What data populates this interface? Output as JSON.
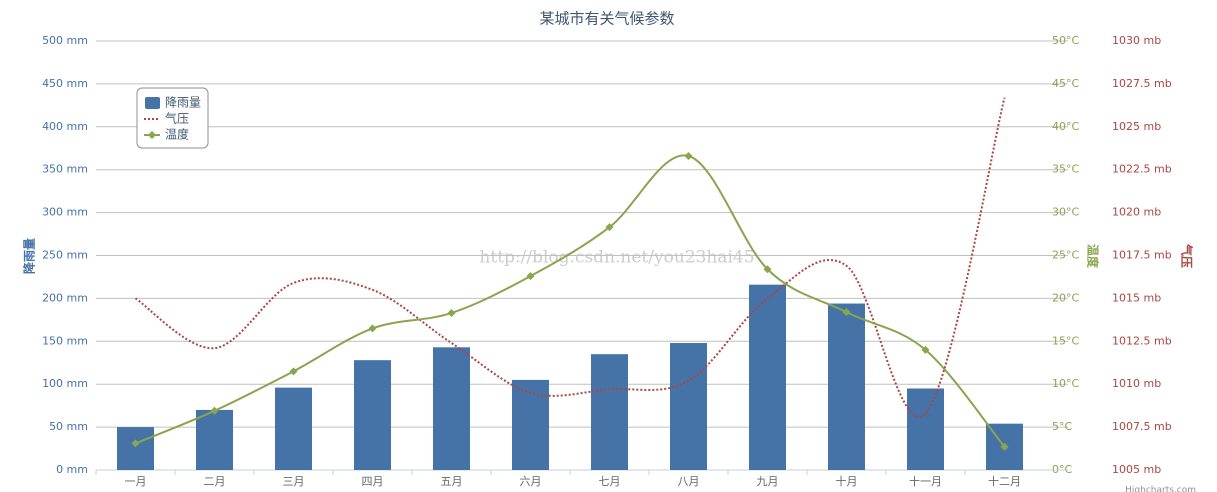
{
  "chart_data": {
    "type": "bar",
    "title": "某城市有关气候参数",
    "categories": [
      "一月",
      "二月",
      "三月",
      "四月",
      "五月",
      "六月",
      "七月",
      "八月",
      "九月",
      "十月",
      "十一月",
      "十二月"
    ],
    "series": [
      {
        "name": "降雨量",
        "type": "column",
        "axis": "y",
        "color": "#4572A7",
        "values": [
          50,
          70,
          96,
          128,
          143,
          105,
          135,
          148,
          216,
          194,
          95,
          54
        ]
      },
      {
        "name": "气压",
        "type": "spline",
        "dash": true,
        "axis": "y3",
        "color": "#AA4643",
        "values": [
          1015.0,
          1012.1,
          1015.9,
          1015.5,
          1012.4,
          1009.5,
          1009.7,
          1010.2,
          1015.0,
          1016.9,
          1008.3,
          1026.7
        ]
      },
      {
        "name": "温度",
        "type": "spline",
        "marker": true,
        "axis": "y2",
        "color": "#89A54E",
        "values": [
          3.1,
          6.9,
          11.5,
          16.5,
          18.3,
          22.6,
          28.3,
          36.6,
          23.4,
          18.4,
          14.0,
          2.7
        ]
      }
    ],
    "y_label": "降雨量",
    "ylim": [
      0,
      500
    ],
    "yticks": [
      {
        "value": 0,
        "label": "0 mm"
      },
      {
        "value": 50,
        "label": "50 mm"
      },
      {
        "value": 100,
        "label": "100 mm"
      },
      {
        "value": 150,
        "label": "150 mm"
      },
      {
        "value": 200,
        "label": "200 mm"
      },
      {
        "value": 250,
        "label": "250 mm"
      },
      {
        "value": 300,
        "label": "300 mm"
      },
      {
        "value": 350,
        "label": "350 mm"
      },
      {
        "value": 400,
        "label": "400 mm"
      },
      {
        "value": 450,
        "label": "450 mm"
      },
      {
        "value": 500,
        "label": "500 mm"
      }
    ],
    "y2_label": "温度",
    "y2lim": [
      0,
      50
    ],
    "y2ticks": [
      {
        "value": 0,
        "label": "0°C"
      },
      {
        "value": 5,
        "label": "5°C"
      },
      {
        "value": 10,
        "label": "10°C"
      },
      {
        "value": 15,
        "label": "15°C"
      },
      {
        "value": 20,
        "label": "20°C"
      },
      {
        "value": 25,
        "label": "25°C"
      },
      {
        "value": 30,
        "label": "30°C"
      },
      {
        "value": 35,
        "label": "35°C"
      },
      {
        "value": 40,
        "label": "40°C"
      },
      {
        "value": 45,
        "label": "45°C"
      },
      {
        "value": 50,
        "label": "50°C"
      }
    ],
    "y3_label": "气压",
    "y3lim": [
      1005,
      1030
    ],
    "y3ticks": [
      {
        "value": 1005,
        "label": "1005 mb"
      },
      {
        "value": 1007.5,
        "label": "1007.5 mb"
      },
      {
        "value": 1010,
        "label": "1010 mb"
      },
      {
        "value": 1012.5,
        "label": "1012.5 mb"
      },
      {
        "value": 1015,
        "label": "1015 mb"
      },
      {
        "value": 1017.5,
        "label": "1017.5 mb"
      },
      {
        "value": 1020,
        "label": "1020 mb"
      },
      {
        "value": 1022.5,
        "label": "1022.5 mb"
      },
      {
        "value": 1025,
        "label": "1025 mb"
      },
      {
        "value": 1027.5,
        "label": "1027.5 mb"
      },
      {
        "value": 1030,
        "label": "1030 mb"
      }
    ],
    "grid": true,
    "legend": "upper left",
    "watermark": "http://blog.csdn.net/you23hai45",
    "credit": "Highcharts.com"
  }
}
